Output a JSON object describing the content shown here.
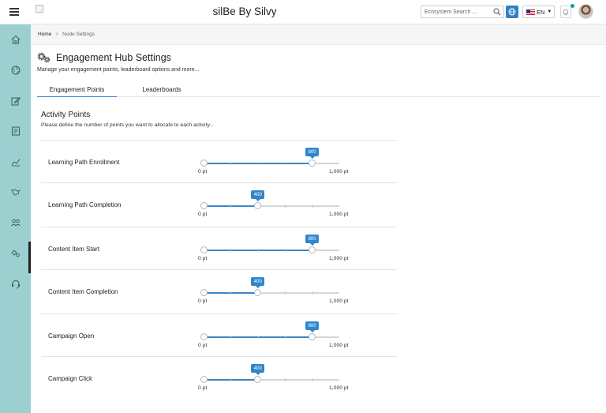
{
  "header": {
    "app_title": "silBe By Silvy",
    "search_placeholder": "Ecosystem Search ...",
    "language": "EN"
  },
  "breadcrumb": {
    "home": "Home",
    "separator": ">",
    "current": "Node Settings"
  },
  "page": {
    "title": "Engagement Hub Settings",
    "subtitle": "Manage your engagement points, leaderboard options and more..."
  },
  "tabs": [
    {
      "label": "Engagement Points",
      "active": true
    },
    {
      "label": "Leaderboards",
      "active": false
    }
  ],
  "section": {
    "title": "Activity Points",
    "description": "Please define the number of points you want to allocate to each activity..."
  },
  "slider_range": {
    "min": 0,
    "max": 1000,
    "min_label": "0 pt",
    "max_label": "1,000 pt"
  },
  "activities": [
    {
      "label": "Learning Path Enrollment",
      "value": 800
    },
    {
      "label": "Learning Path Completion",
      "value": 400
    },
    {
      "label": "Content Item Start",
      "value": 800
    },
    {
      "label": "Content Item Completion",
      "value": 400
    },
    {
      "label": "Campaign Open",
      "value": 800
    },
    {
      "label": "Campaign Click",
      "value": 400
    }
  ],
  "sidebar": {
    "items": [
      {
        "icon": "home-icon"
      },
      {
        "icon": "globe-network-icon"
      },
      {
        "icon": "edit-icon"
      },
      {
        "icon": "document-icon"
      },
      {
        "icon": "analytics-icon"
      },
      {
        "icon": "handshake-icon"
      },
      {
        "icon": "users-icon",
        "active": false
      },
      {
        "icon": "engagement-hub-icon",
        "active": true
      },
      {
        "icon": "support-headset-icon"
      }
    ]
  },
  "colors": {
    "accent": "#2f80c6",
    "sidebar": "#9ccfd0",
    "badge": "#2f86cc"
  }
}
